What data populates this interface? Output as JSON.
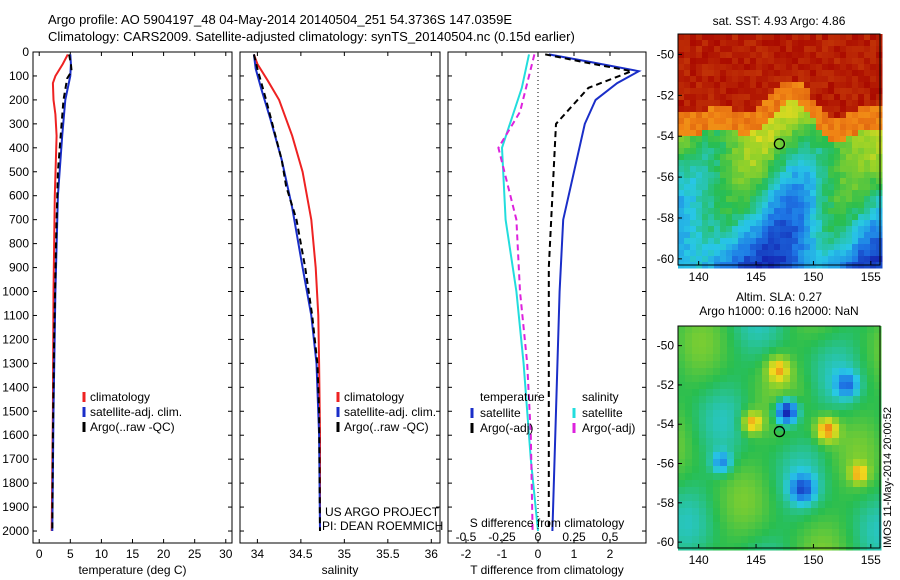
{
  "header": {
    "line1": "Argo profile: AO 5904197_48 04-May-2014 20140504_251 54.3736S 147.0359E",
    "line2": "Climatology: CARS2009. Satellite-adjusted climatology: synTS_20140504.nc (0.15d earlier)"
  },
  "colors": {
    "red": "#ee2222",
    "blue": "#1a2ec8",
    "black": "#000000",
    "cyan": "#22dddd",
    "magenta": "#dd22dd"
  },
  "chart_data": [
    {
      "type": "line",
      "id": "temperature",
      "xlabel": "temperature (deg C)",
      "ylabel": "",
      "xlim": [
        -1,
        31
      ],
      "ylim": [
        2050,
        0
      ],
      "xticks": [
        0,
        5,
        10,
        15,
        20,
        25,
        30
      ],
      "yticks": [
        0,
        100,
        200,
        300,
        400,
        500,
        600,
        700,
        800,
        900,
        1000,
        1100,
        1200,
        1300,
        1400,
        1500,
        1600,
        1700,
        1800,
        1900,
        2000
      ],
      "legend": [
        "climatology",
        "satellite-adj. clim.",
        "Argo(..raw -QC)"
      ],
      "series": [
        {
          "name": "climatology",
          "color": "red",
          "dash": "",
          "points": [
            [
              4.6,
              10
            ],
            [
              3.8,
              50
            ],
            [
              2.6,
              100
            ],
            [
              2.2,
              130
            ],
            [
              2.3,
              200
            ],
            [
              2.6,
              260
            ],
            [
              2.8,
              350
            ],
            [
              2.5,
              600
            ],
            [
              2.3,
              1000
            ],
            [
              2.2,
              1500
            ],
            [
              2.0,
              2000
            ]
          ]
        },
        {
          "name": "satellite-adj. clim.",
          "color": "blue",
          "dash": "",
          "points": [
            [
              5.0,
              10
            ],
            [
              5.1,
              50
            ],
            [
              5.0,
              100
            ],
            [
              4.2,
              200
            ],
            [
              3.7,
              350
            ],
            [
              3.0,
              600
            ],
            [
              2.6,
              1000
            ],
            [
              2.3,
              1500
            ],
            [
              2.1,
              2000
            ]
          ]
        },
        {
          "name": "Argo(..raw -QC)",
          "color": "black",
          "dash": "6,4",
          "points": [
            [
              4.8,
              10
            ],
            [
              5.1,
              50
            ],
            [
              5.2,
              80
            ],
            [
              4.5,
              110
            ],
            [
              3.9,
              200
            ],
            [
              3.6,
              300
            ],
            [
              3.0,
              500
            ],
            [
              2.7,
              800
            ],
            [
              2.4,
              1200
            ],
            [
              2.2,
              1600
            ],
            [
              2.1,
              2000
            ]
          ]
        }
      ]
    },
    {
      "type": "line",
      "id": "salinity",
      "xlabel": "salinity",
      "ylabel": "",
      "xlim": [
        33.8,
        36.1
      ],
      "ylim": [
        2050,
        0
      ],
      "xticks": [
        34,
        34.5,
        35,
        35.5,
        36
      ],
      "legend": [
        "climatology",
        "satellite-adj. clim.",
        "Argo(..raw -QC)"
      ],
      "annotations": [
        "US ARGO PROJECT",
        "PI: DEAN ROEMMICH"
      ],
      "series": [
        {
          "name": "climatology",
          "color": "red",
          "dash": "",
          "points": [
            [
              33.96,
              10
            ],
            [
              34.0,
              50
            ],
            [
              34.12,
              120
            ],
            [
              34.25,
              200
            ],
            [
              34.4,
              350
            ],
            [
              34.52,
              500
            ],
            [
              34.62,
              700
            ],
            [
              34.67,
              900
            ],
            [
              34.7,
              1100
            ],
            [
              34.71,
              1300
            ],
            [
              34.72,
              1600
            ],
            [
              34.72,
              2000
            ]
          ]
        },
        {
          "name": "satellite-adj. clim.",
          "color": "blue",
          "dash": "",
          "points": [
            [
              33.96,
              10
            ],
            [
              33.98,
              70
            ],
            [
              34.05,
              160
            ],
            [
              34.15,
              280
            ],
            [
              34.28,
              450
            ],
            [
              34.4,
              650
            ],
            [
              34.52,
              900
            ],
            [
              34.62,
              1100
            ],
            [
              34.68,
              1300
            ],
            [
              34.71,
              1600
            ],
            [
              34.72,
              2000
            ]
          ]
        },
        {
          "name": "Argo(..raw -QC)",
          "color": "black",
          "dash": "6,4",
          "points": [
            [
              33.96,
              10
            ],
            [
              34.0,
              70
            ],
            [
              34.1,
              200
            ],
            [
              34.28,
              450
            ],
            [
              34.33,
              560
            ],
            [
              34.45,
              700
            ],
            [
              34.55,
              900
            ],
            [
              34.63,
              1100
            ],
            [
              34.69,
              1300
            ],
            [
              34.71,
              1500
            ],
            [
              34.72,
              2000
            ]
          ]
        }
      ]
    },
    {
      "type": "line",
      "id": "difference",
      "xlabel": "T difference from climatology",
      "xlabel_top": "S difference from climatology",
      "xlim": [
        -2.5,
        3.0
      ],
      "ylim": [
        2050,
        0
      ],
      "xticks": [
        -2,
        -1,
        0,
        1,
        2
      ],
      "xticks_top": [
        -0.5,
        -0.25,
        0,
        0.25,
        0.5
      ],
      "legend_groups": [
        {
          "title": "temperature",
          "items": [
            "satellite",
            "Argo(-adj)"
          ]
        },
        {
          "title": "salinity",
          "items": [
            "satellite",
            "Argo(-adj)"
          ]
        }
      ],
      "series": [
        {
          "name": "temperature satellite",
          "color": "blue",
          "dash": "",
          "points": [
            [
              0.3,
              10
            ],
            [
              1.4,
              40
            ],
            [
              2.8,
              80
            ],
            [
              2.2,
              130
            ],
            [
              1.6,
              200
            ],
            [
              1.3,
              300
            ],
            [
              1.0,
              500
            ],
            [
              0.7,
              700
            ],
            [
              0.6,
              1000
            ],
            [
              0.5,
              1500
            ],
            [
              0.4,
              2000
            ]
          ]
        },
        {
          "name": "temperature Argo(-adj)",
          "color": "black",
          "dash": "6,4",
          "points": [
            [
              0.2,
              10
            ],
            [
              1.2,
              40
            ],
            [
              2.6,
              80
            ],
            [
              1.4,
              150
            ],
            [
              0.5,
              300
            ],
            [
              0.4,
              600
            ],
            [
              0.3,
              900
            ],
            [
              0.3,
              1400
            ],
            [
              0.3,
              2000
            ]
          ]
        },
        {
          "name": "salinity satellite",
          "color": "cyan",
          "dash": "",
          "points": [
            [
              -0.25,
              10
            ],
            [
              -0.45,
              150
            ],
            [
              -1.0,
              400
            ],
            [
              -0.9,
              700
            ],
            [
              -0.6,
              1000
            ],
            [
              -0.4,
              1300
            ],
            [
              -0.2,
              1700
            ],
            [
              0.0,
              2000
            ]
          ]
        },
        {
          "name": "salinity Argo(-adj)",
          "color": "magenta",
          "dash": "6,4",
          "points": [
            [
              -0.1,
              10
            ],
            [
              -0.25,
              100
            ],
            [
              -0.5,
              250
            ],
            [
              -1.1,
              400
            ],
            [
              -0.6,
              700
            ],
            [
              -0.5,
              1000
            ],
            [
              -0.3,
              1300
            ],
            [
              -0.2,
              1600
            ],
            [
              -0.15,
              2000
            ]
          ]
        }
      ]
    },
    {
      "type": "heatmap",
      "id": "sst_map",
      "title": "sat. SST: 4.93  Argo: 4.86",
      "xticks": [
        140,
        145,
        150,
        155
      ],
      "yticks": [
        -50,
        -52,
        -54,
        -56,
        -58,
        -60
      ],
      "xlim": [
        138.2,
        155.8
      ],
      "ylim": [
        -60.3,
        -49.0
      ],
      "marker": [
        147.0359,
        -54.3736
      ]
    },
    {
      "type": "heatmap",
      "id": "sla_map",
      "title": "Altim. SLA: 0.27",
      "subtitle": "Argo h1000: 0.16  h2000: NaN",
      "xticks": [
        140,
        145,
        150,
        155
      ],
      "yticks": [
        -50,
        -52,
        -54,
        -56,
        -58,
        -60
      ],
      "xlim": [
        138.2,
        155.8
      ],
      "ylim": [
        -60.3,
        -49.0
      ],
      "marker": [
        147.0359,
        -54.3736
      ],
      "side_label": "IMOS 11-May-2014 20:00:52"
    }
  ]
}
